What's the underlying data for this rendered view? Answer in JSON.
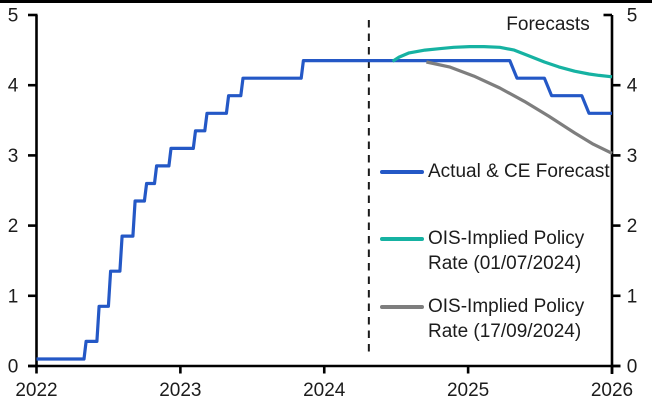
{
  "chart_data": {
    "type": "line",
    "title": "",
    "forecast_label": "Forecasts",
    "grid": false,
    "legend_position": "middle-right-inside",
    "x_axis": {
      "range": [
        2022,
        2026
      ],
      "ticks": [
        2022,
        2023,
        2024,
        2025,
        2026
      ],
      "tick_labels": [
        "2022",
        "2023",
        "2024",
        "2025",
        "2026"
      ]
    },
    "y_axis": {
      "range": [
        0,
        5
      ],
      "ticks": [
        0,
        1,
        2,
        3,
        4,
        5
      ],
      "tick_labels": [
        "0",
        "1",
        "2",
        "3",
        "4",
        "5"
      ],
      "left": true,
      "right": true
    },
    "forecast_divider_x": 2024.31,
    "series": [
      {
        "name": "Actual & CE Forecast",
        "color": "#2458c6",
        "points": [
          [
            2022.0,
            0.1
          ],
          [
            2022.33,
            0.1
          ],
          [
            2022.345,
            0.35
          ],
          [
            2022.42,
            0.35
          ],
          [
            2022.435,
            0.85
          ],
          [
            2022.5,
            0.85
          ],
          [
            2022.515,
            1.35
          ],
          [
            2022.58,
            1.35
          ],
          [
            2022.595,
            1.85
          ],
          [
            2022.67,
            1.85
          ],
          [
            2022.685,
            2.35
          ],
          [
            2022.75,
            2.35
          ],
          [
            2022.765,
            2.6
          ],
          [
            2022.82,
            2.6
          ],
          [
            2022.835,
            2.85
          ],
          [
            2022.92,
            2.85
          ],
          [
            2022.935,
            3.1
          ],
          [
            2023.09,
            3.1
          ],
          [
            2023.105,
            3.35
          ],
          [
            2023.17,
            3.35
          ],
          [
            2023.185,
            3.6
          ],
          [
            2023.32,
            3.6
          ],
          [
            2023.335,
            3.85
          ],
          [
            2023.42,
            3.85
          ],
          [
            2023.435,
            4.1
          ],
          [
            2023.84,
            4.1
          ],
          [
            2023.855,
            4.35
          ],
          [
            2025.29,
            4.35
          ],
          [
            2025.34,
            4.1
          ],
          [
            2025.53,
            4.1
          ],
          [
            2025.58,
            3.85
          ],
          [
            2025.79,
            3.85
          ],
          [
            2025.84,
            3.6
          ],
          [
            2026.0,
            3.6
          ]
        ]
      },
      {
        "name": "OIS-Implied Policy Rate (01/07/2024)",
        "color": "#16b2a2",
        "points": [
          [
            2024.475,
            4.34
          ],
          [
            2024.52,
            4.4
          ],
          [
            2024.59,
            4.46
          ],
          [
            2024.7,
            4.5
          ],
          [
            2024.8,
            4.52
          ],
          [
            2024.9,
            4.54
          ],
          [
            2025.01,
            4.55
          ],
          [
            2025.11,
            4.55
          ],
          [
            2025.22,
            4.54
          ],
          [
            2025.32,
            4.5
          ],
          [
            2025.42,
            4.42
          ],
          [
            2025.53,
            4.33
          ],
          [
            2025.63,
            4.26
          ],
          [
            2025.74,
            4.2
          ],
          [
            2025.84,
            4.16
          ],
          [
            2025.91,
            4.14
          ],
          [
            2026.0,
            4.12
          ]
        ]
      },
      {
        "name": "OIS-Implied Policy Rate (17/09/2024)",
        "color": "#7e7e7e",
        "points": [
          [
            2024.71,
            4.33
          ],
          [
            2024.87,
            4.26
          ],
          [
            2025.04,
            4.13
          ],
          [
            2025.22,
            3.96
          ],
          [
            2025.39,
            3.77
          ],
          [
            2025.56,
            3.56
          ],
          [
            2025.74,
            3.32
          ],
          [
            2025.87,
            3.16
          ],
          [
            2026.0,
            3.03
          ]
        ]
      }
    ],
    "legend": [
      {
        "color": "#2458c6",
        "label_lines": [
          "Actual & CE Forecast"
        ]
      },
      {
        "color": "#16b2a2",
        "label_lines": [
          "OIS-Implied Policy",
          "Rate (01/07/2024)"
        ]
      },
      {
        "color": "#7e7e7e",
        "label_lines": [
          "OIS-Implied Policy",
          "Rate (17/09/2024)"
        ]
      }
    ],
    "colors": {
      "axis": "#000000",
      "top_border": "#000000",
      "text": "#1c1c1c",
      "divider": "#1a1a1a"
    }
  }
}
